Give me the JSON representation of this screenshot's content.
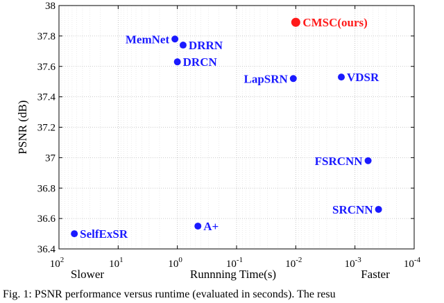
{
  "chart_data": {
    "type": "scatter",
    "ylabel": "PSNR (dB)",
    "xlabel": "Runnning Time(s)",
    "x_left_note": "Slower",
    "x_right_note": "Faster",
    "x_scale": "log",
    "x_reversed": true,
    "xlim": [
      100,
      0.0001
    ],
    "ylim": [
      36.4,
      38
    ],
    "grid": true,
    "x_ticks": [
      {
        "base": "10",
        "exp": "2",
        "value": 100
      },
      {
        "base": "10",
        "exp": "1",
        "value": 10
      },
      {
        "base": "10",
        "exp": "0",
        "value": 1
      },
      {
        "base": "10",
        "exp": "-1",
        "value": 0.1
      },
      {
        "base": "10",
        "exp": "-2",
        "value": 0.01
      },
      {
        "base": "10",
        "exp": "-3",
        "value": 0.001
      },
      {
        "base": "10",
        "exp": "-4",
        "value": 0.0001
      }
    ],
    "y_ticks": [
      "36.4",
      "36.6",
      "36.8",
      "37",
      "37.2",
      "37.4",
      "37.6",
      "37.8",
      "38"
    ],
    "colors": {
      "ours": "#ff1a1a",
      "others": "#1a1aff"
    },
    "points": [
      {
        "name": "CMSC(ours)",
        "x": 0.01,
        "y": 37.89,
        "highlight": true,
        "label_side": "right"
      },
      {
        "name": "MemNet",
        "x": 1.1,
        "y": 37.78,
        "highlight": false,
        "label_side": "left"
      },
      {
        "name": "DRRN",
        "x": 0.8,
        "y": 37.74,
        "highlight": false,
        "label_side": "right"
      },
      {
        "name": "DRCN",
        "x": 1.0,
        "y": 37.63,
        "highlight": false,
        "label_side": "right"
      },
      {
        "name": "LapSRN",
        "x": 0.011,
        "y": 37.52,
        "highlight": false,
        "label_side": "left"
      },
      {
        "name": "VDSR",
        "x": 0.0017,
        "y": 37.53,
        "highlight": false,
        "label_side": "right"
      },
      {
        "name": "FSRCNN",
        "x": 0.0006,
        "y": 36.98,
        "highlight": false,
        "label_side": "left"
      },
      {
        "name": "SRCNN",
        "x": 0.0004,
        "y": 36.66,
        "highlight": false,
        "label_side": "left"
      },
      {
        "name": "SelfExSR",
        "x": 55,
        "y": 36.5,
        "highlight": false,
        "label_side": "right"
      },
      {
        "name": "A+",
        "x": 0.45,
        "y": 36.55,
        "highlight": false,
        "label_side": "right"
      }
    ]
  },
  "caption": "Fig. 1: PSNR performance versus runtime (evaluated in seconds). The resu"
}
